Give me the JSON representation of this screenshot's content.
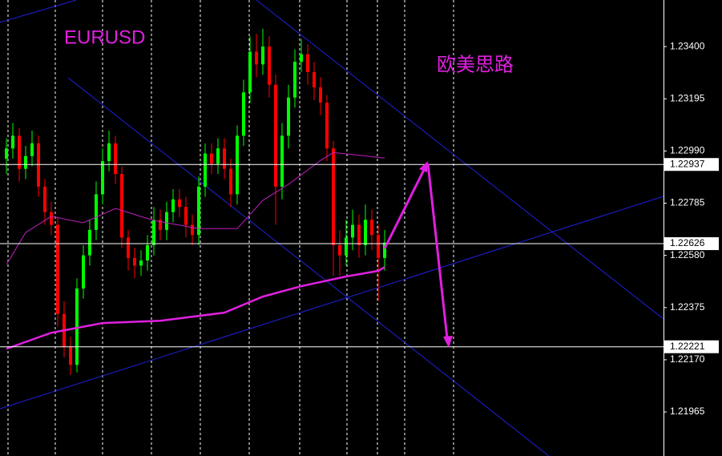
{
  "chart_data": {
    "type": "candlestick",
    "title": "EURUSD",
    "annotation": "欧美思路",
    "ylim": [
      1.21792,
      1.23583
    ],
    "yticks": [
      {
        "value": 1.234,
        "label": "1.23400"
      },
      {
        "value": 1.23195,
        "label": "1.23195"
      },
      {
        "value": 1.2299,
        "label": "1.22990"
      },
      {
        "value": 1.22785,
        "label": "1.22785"
      },
      {
        "value": 1.2258,
        "label": "1.22580"
      },
      {
        "value": 1.22375,
        "label": "1.22375"
      },
      {
        "value": 1.2217,
        "label": "1.22170"
      },
      {
        "value": 1.21965,
        "label": "1.21965"
      }
    ],
    "levels": [
      {
        "value": 1.22937,
        "label": "1.22937"
      },
      {
        "value": 1.22626,
        "label": "1.22626"
      },
      {
        "value": 1.22221,
        "label": "1.22221"
      }
    ],
    "up_color": "#00ff00",
    "down_color": "#ff0000",
    "open": [
      1.2296,
      1.23,
      1.2305,
      1.2292,
      1.2297,
      1.2302,
      1.2285,
      1.2275,
      1.227,
      1.2235,
      1.2222,
      1.2215,
      1.2245,
      1.2258,
      1.2268,
      1.2282,
      1.2295,
      1.2302,
      1.229,
      1.2265,
      1.2257,
      1.2254,
      1.2256,
      1.2262,
      1.2272,
      1.2268,
      1.2275,
      1.228,
      1.2277,
      1.227,
      1.2266,
      1.2285,
      1.2298,
      1.2294,
      1.23,
      1.2292,
      1.2282,
      1.2305,
      1.2322,
      1.2338,
      1.2333,
      1.234,
      1.2325,
      1.2285,
      1.2305,
      1.232,
      1.2334,
      1.2337,
      1.233,
      1.2324,
      1.2318,
      1.23,
      1.2262,
      1.2258,
      1.2265,
      1.227,
      1.2262,
      1.2272,
      1.2266,
      1.2257
    ],
    "high": [
      1.2304,
      1.231,
      1.2308,
      1.2301,
      1.2307,
      1.2305,
      1.2288,
      1.2279,
      1.2273,
      1.224,
      1.2226,
      1.2249,
      1.2262,
      1.2272,
      1.2287,
      1.23,
      1.2307,
      1.2305,
      1.2293,
      1.2268,
      1.2261,
      1.226,
      1.2266,
      1.2277,
      1.2276,
      1.2279,
      1.2284,
      1.2284,
      1.2281,
      1.2274,
      1.2289,
      1.2302,
      1.2302,
      1.2304,
      1.2304,
      1.2296,
      1.2309,
      1.2327,
      1.2344,
      1.2345,
      1.2347,
      1.2344,
      1.2329,
      1.231,
      1.2325,
      1.2339,
      1.2343,
      1.2341,
      1.2334,
      1.2328,
      1.2321,
      1.2303,
      1.2268,
      1.2272,
      1.2276,
      1.2274,
      1.2278,
      1.2276,
      1.227,
      1.2268
    ],
    "low": [
      1.229,
      1.2296,
      1.2287,
      1.2288,
      1.2293,
      1.2281,
      1.227,
      1.2266,
      1.223,
      1.2218,
      1.2211,
      1.2212,
      1.2241,
      1.2254,
      1.2264,
      1.2278,
      1.2291,
      1.2286,
      1.2261,
      1.2252,
      1.2249,
      1.225,
      1.2252,
      1.2258,
      1.2264,
      1.2264,
      1.2271,
      1.2273,
      1.2265,
      1.2262,
      1.2262,
      1.2281,
      1.229,
      1.229,
      1.2288,
      1.2277,
      1.2278,
      1.2301,
      1.2318,
      1.2328,
      1.2329,
      1.232,
      1.227,
      1.228,
      1.23,
      1.2316,
      1.233,
      1.2325,
      1.2319,
      1.2313,
      1.2295,
      1.225,
      1.225,
      1.2254,
      1.226,
      1.2257,
      1.2258,
      1.226,
      1.224,
      1.2252
    ],
    "close": [
      1.23,
      1.2305,
      1.2292,
      1.2297,
      1.2302,
      1.2285,
      1.2275,
      1.227,
      1.2235,
      1.2222,
      1.2215,
      1.2245,
      1.2258,
      1.2268,
      1.2282,
      1.2295,
      1.2302,
      1.229,
      1.2265,
      1.2257,
      1.2254,
      1.2256,
      1.2262,
      1.2272,
      1.2268,
      1.2275,
      1.228,
      1.2277,
      1.227,
      1.2266,
      1.2285,
      1.2298,
      1.2294,
      1.23,
      1.2292,
      1.2282,
      1.2305,
      1.2322,
      1.2338,
      1.2333,
      1.234,
      1.2325,
      1.2285,
      1.2305,
      1.232,
      1.2334,
      1.2337,
      1.233,
      1.2324,
      1.2318,
      1.23,
      1.2262,
      1.2258,
      1.2265,
      1.227,
      1.2262,
      1.2272,
      1.2266,
      1.2257,
      1.2263
    ],
    "series": [
      {
        "color": "#e020e0",
        "x": [
          0,
          7,
          15,
          24,
          34,
          40,
          46,
          53,
          58,
          59
        ],
        "values": [
          1.22213,
          1.22276,
          1.22314,
          1.22323,
          1.22355,
          1.22418,
          1.22459,
          1.22497,
          1.22519,
          1.22534
        ]
      },
      {
        "color": "#c020c0",
        "x": [
          0,
          3,
          7,
          12,
          17,
          23,
          30,
          36,
          40,
          44,
          49,
          51,
          59
        ],
        "values": [
          1.22544,
          1.2267,
          1.22733,
          1.22708,
          1.22764,
          1.22717,
          1.22685,
          1.22685,
          1.22796,
          1.22859,
          1.22953,
          1.22984,
          1.22962
        ]
      }
    ]
  }
}
